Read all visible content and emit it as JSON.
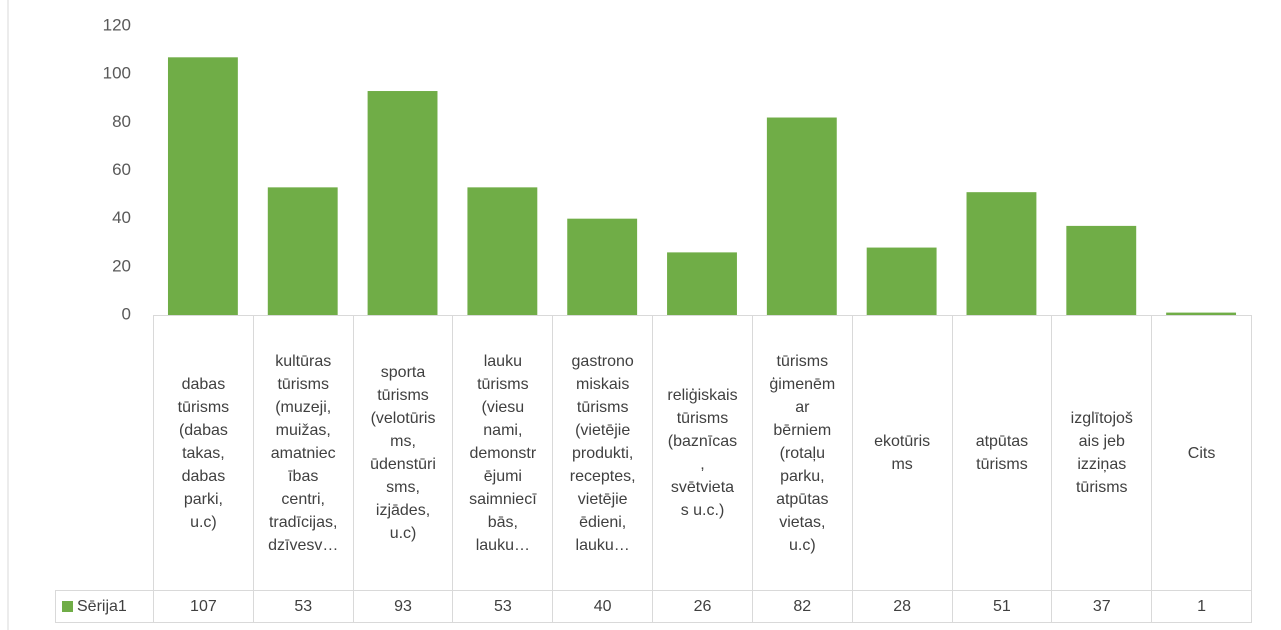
{
  "chart_data": {
    "type": "bar",
    "categories": [
      "dabas\ntūrisms\n(dabas\ntakas,\ndabas\nparki,\nu.c)",
      "kultūras\ntūrisms\n(muzeji,\nmuižas,\namatniec\nības\ncentri,\ntradīcijas,\ndzīvesv…",
      "sporta\ntūrisms\n(velotūris\nms,\nūdenstūri\nsms,\nizjādes,\nu.c)",
      "lauku\ntūrisms\n(viesu\nnami,\ndemonstr\nējumi\nsaimniecī\nbās,\nlauku…",
      "gastrono\nmiskais\ntūrisms\n(vietējie\nprodukti,\nreceptes,\nvietējie\nēdieni,\nlauku…",
      "reliģiskais\ntūrisms\n(baznīcas\n,\nsvētvieta\ns u.c.)",
      "tūrisms\nģimenēm\nar\nbērniem\n(rotaļu\nparku,\natpūtas\nvietas,\nu.c)",
      "ekotūris\nms",
      "atpūtas\ntūrisms",
      "izglītojoš\nais jeb\nizziņas\ntūrisms",
      "Cits"
    ],
    "series": [
      {
        "name": "Sērija1",
        "color": "#70ad47",
        "values": [
          107,
          53,
          93,
          53,
          40,
          26,
          82,
          28,
          51,
          37,
          1
        ]
      }
    ],
    "ylim": [
      0,
      120
    ],
    "yticks": [
      0,
      20,
      40,
      60,
      80,
      100,
      120
    ],
    "grid": false
  }
}
